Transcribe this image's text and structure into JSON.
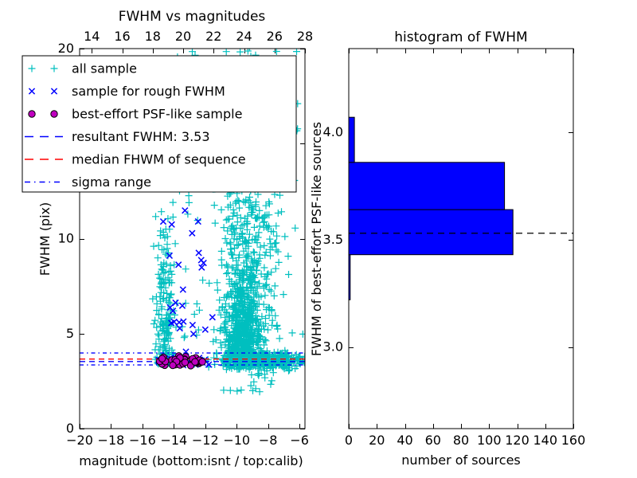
{
  "figure": {
    "background": "#ffffff"
  },
  "colors": {
    "all_sample": "#00BFBF",
    "rough_sample": "#0000FF",
    "psf_sample": "#BF00BF",
    "psf_sample_edge": "#000000",
    "resultant_line": "#0000FF",
    "median_line": "#FF0000",
    "sigma_line": "#0000FF",
    "hist_bar": "#0000FF",
    "hist_dashed_line": "#000000",
    "frame": "#000000"
  },
  "legend": {
    "items": [
      {
        "label": "all sample",
        "marker": "plus",
        "color": "#00BFBF"
      },
      {
        "label": "sample for rough FWHM",
        "marker": "x",
        "color": "#0000FF"
      },
      {
        "label": "best-effort PSF-like sample",
        "marker": "circle",
        "color": "#BF00BF"
      },
      {
        "label": "resultant FWHM: 3.53",
        "marker": "dashed",
        "color": "#0000FF"
      },
      {
        "label": "median FHWM of sequence",
        "marker": "dashed",
        "color": "#FF0000"
      },
      {
        "label": "sigma range",
        "marker": "dashdot",
        "color": "#0000FF"
      }
    ]
  },
  "chart_data": [
    {
      "type": "scatter",
      "title": "FWHM vs magnitudes",
      "xlabel": "magnitude (bottom:isnt / top:calib)",
      "ylabel": "FWHM (pix)",
      "xlim": [
        -20,
        -5.65
      ],
      "ylim": [
        0,
        20
      ],
      "top_axis_xlim_calib": [
        13.2,
        28
      ],
      "x_ticks_bottom": {
        "values": [
          -20,
          -18,
          -16,
          -14,
          -12,
          -10,
          -8,
          -6
        ],
        "labels": [
          "−20",
          "−18",
          "−16",
          "−14",
          "−12",
          "−10",
          "−8",
          "−6"
        ]
      },
      "x_ticks_top_calib": {
        "values": [
          14,
          16,
          18,
          20,
          22,
          24,
          26,
          28
        ],
        "labels": [
          "14",
          "16",
          "18",
          "20",
          "22",
          "24",
          "26",
          "28"
        ]
      },
      "y_ticks": {
        "values": [
          0,
          5,
          10,
          15,
          20
        ],
        "labels": [
          "0",
          "5",
          "10",
          "15",
          "20"
        ]
      },
      "grid": false,
      "legend_position": "upper left",
      "lines": {
        "resultant_fwhm": 3.53,
        "median_fwhm_of_sequence": 3.66,
        "sigma_range": [
          3.35,
          3.98
        ]
      },
      "note": "dense point clouds estimated from pixels; regenerated from seeded density model below",
      "series": [
        {
          "name": "all sample",
          "marker": "plus",
          "color": "#00BFBF",
          "clusters": [
            {
              "n": 170,
              "mag": [
                "g",
                -14.55,
                0.32,
                -15.35,
                -13.8
              ],
              "fwhm": [
                "hg",
                3.35,
                3.6,
                20.2
              ]
            },
            {
              "n": 620,
              "mag": [
                "g",
                -9.6,
                0.62,
                -11.2,
                -7.8
              ],
              "fwhm": [
                "hg",
                3.25,
                2.3,
                13.6
              ]
            },
            {
              "n": 380,
              "mag": [
                "g",
                -8.3,
                1.5,
                -12.9,
                -5.55
              ],
              "fwhm": [
                "g",
                3.6,
                0.22,
                2.95,
                4.4
              ]
            },
            {
              "n": 320,
              "mag": [
                "g",
                -9.3,
                0.95,
                -11.6,
                -6.6
              ],
              "fwhm": [
                "u",
                4.5,
                13.0
              ]
            },
            {
              "n": 150,
              "mag": [
                "u",
                -15.3,
                -5.7
              ],
              "fwhm": [
                "u",
                4.5,
                20.15
              ]
            },
            {
              "n": 22,
              "mag": [
                "g",
                -8.8,
                1.3,
                -10.9,
                -5.8
              ],
              "fwhm": [
                "u",
                1.9,
                3.2
              ]
            }
          ]
        },
        {
          "name": "sample for rough FWHM",
          "marker": "x",
          "color": "#0000FF",
          "clusters": [
            {
              "n": 22,
              "mag": [
                "u",
                -15.0,
                -11.7
              ],
              "fwhm": [
                "g",
                3.55,
                0.16,
                3.2,
                3.95
              ]
            },
            {
              "n": 26,
              "mag": [
                "g",
                -13.2,
                0.8,
                -14.9,
                -11.4
              ],
              "fwhm": [
                "u",
                3.9,
                12.3
              ]
            }
          ]
        },
        {
          "name": "best-effort PSF-like sample",
          "marker": "circle",
          "color": "#BF00BF",
          "clusters": [
            {
              "n": 34,
              "mag": [
                "u",
                -15.05,
                -12.1
              ],
              "fwhm": [
                "g",
                3.55,
                0.13,
                3.3,
                3.86
              ]
            }
          ]
        }
      ]
    },
    {
      "type": "bar",
      "orientation": "horizontal",
      "title": "histogram of FWHM",
      "xlabel": "number of sources",
      "ylabel": "FWHM of best-effort PSF-like sources",
      "xlim": [
        0,
        160
      ],
      "ylim": [
        2.62,
        4.39
      ],
      "x_ticks": {
        "values": [
          0,
          20,
          40,
          60,
          80,
          100,
          120,
          140,
          160
        ],
        "labels": [
          "0",
          "20",
          "40",
          "60",
          "80",
          "100",
          "120",
          "140",
          "160"
        ]
      },
      "y_ticks": {
        "values": [
          3.0,
          3.5,
          4.0
        ],
        "labels": [
          "3.0",
          "3.5",
          "4.0"
        ]
      },
      "bin_edges": [
        3.22,
        3.43,
        3.64,
        3.86,
        4.07
      ],
      "counts": [
        1,
        117,
        111,
        4
      ],
      "dashed_line_fwhm": 3.53,
      "bar_color": "#0000FF",
      "grid": false
    }
  ]
}
